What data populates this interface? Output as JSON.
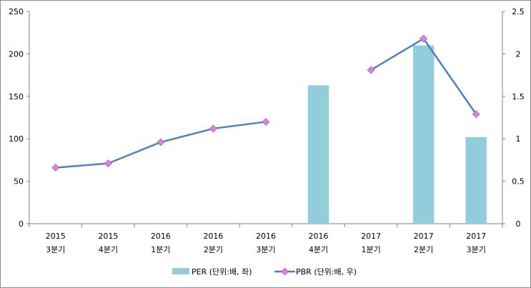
{
  "chart_data": {
    "type": "bar",
    "categories": [
      [
        "2015",
        "3분기"
      ],
      [
        "2015",
        "4분기"
      ],
      [
        "2016",
        "1분기"
      ],
      [
        "2016",
        "2분기"
      ],
      [
        "2016",
        "3분기"
      ],
      [
        "2016",
        "4분기"
      ],
      [
        "2017",
        "1분기"
      ],
      [
        "2017",
        "2분기"
      ],
      [
        "2017",
        "3분기"
      ]
    ],
    "y_left": {
      "ylim": [
        0,
        250
      ],
      "ticks": [
        "0",
        "50",
        "100",
        "150",
        "200",
        "250"
      ]
    },
    "y_right": {
      "ylim": [
        0,
        2.5
      ],
      "ticks": [
        "0",
        "0.5",
        "1",
        "1.5",
        "2",
        "2.5"
      ]
    },
    "series": [
      {
        "name": "PER (단위:배, 좌)",
        "type": "bar",
        "axis": "left",
        "color": "#92CDDC",
        "values": [
          null,
          null,
          null,
          null,
          null,
          163,
          null,
          210,
          102
        ]
      },
      {
        "name": "PBR (단위:배, 우)",
        "type": "line",
        "axis": "right",
        "color": "#4F81BD",
        "marker_color": "#E27FE2",
        "values": [
          0.66,
          0.71,
          0.96,
          1.12,
          1.2,
          null,
          1.81,
          2.18,
          1.29
        ]
      }
    ],
    "grid": false,
    "legend_position": "bottom"
  }
}
